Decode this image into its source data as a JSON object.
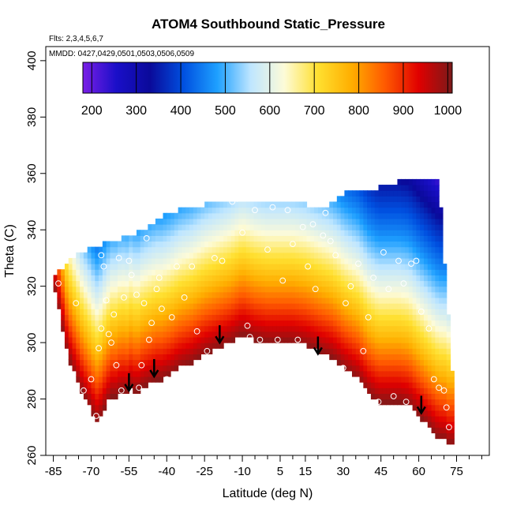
{
  "chart_data": {
    "type": "heatmap",
    "title": "ATOM4 Southbound Static_Pressure",
    "subtitle_flights": "Flts: 2,3,4,5,6,7",
    "mmdd_note": "MMDD: 0427,0429,0501,0503,0506,0509",
    "xlabel": "Latitude (deg N)",
    "ylabel": "Theta (C)",
    "xlim": [
      -88,
      88
    ],
    "ylim": [
      260,
      405
    ],
    "x_ticks_labeled": [
      -85,
      -70,
      -55,
      -40,
      -25,
      -10,
      5,
      15,
      30,
      45,
      60,
      75
    ],
    "x_ticks_labels": [
      "-85",
      "-70",
      "-55",
      "-40",
      "-25",
      "-10",
      "5",
      "15",
      "30",
      "45",
      "60",
      "75"
    ],
    "x_ticks_minor": [
      -80,
      -75,
      -65,
      -60,
      -50,
      -45,
      -35,
      -30,
      -20,
      -15,
      -5,
      0,
      10,
      20,
      25,
      35,
      40,
      50,
      55,
      65,
      70,
      80,
      85
    ],
    "y_ticks": [
      260,
      280,
      300,
      320,
      340,
      360,
      380,
      400
    ],
    "y_ticks_labels": [
      "260",
      "280",
      "300",
      "320",
      "340",
      "360",
      "380",
      "400"
    ],
    "colorbar": {
      "min": 180,
      "max": 1010,
      "ticks": [
        200,
        300,
        400,
        500,
        600,
        700,
        800,
        900,
        1000
      ],
      "tick_labels": [
        "200",
        "300",
        "400",
        "500",
        "600",
        "700",
        "800",
        "900",
        "1000"
      ],
      "colors": [
        "#7a1fe6",
        "#1a0fc8",
        "#0a0a9a",
        "#0050e0",
        "#1ea0ff",
        "#bfe6ff",
        "#fdfbd8",
        "#ffe030",
        "#ffae00",
        "#ff5a00",
        "#e00000",
        "#7a1a1a"
      ]
    },
    "envelope": {
      "lat": [
        -85,
        -82,
        -80,
        -78,
        -74,
        -70,
        -68,
        -66,
        -64,
        -62,
        -60,
        -58,
        -56,
        -54,
        -52,
        -50,
        -48,
        -46,
        -44,
        -42,
        -40,
        -38,
        -35,
        -30,
        -25,
        -20,
        -15,
        -10,
        -5,
        0,
        5,
        10,
        15,
        20,
        25,
        28,
        30,
        33,
        36,
        40,
        44,
        48,
        52,
        56,
        60,
        64,
        68,
        70,
        72,
        73
      ],
      "bottom": [
        321,
        308,
        298,
        292,
        283,
        276,
        272,
        274,
        278,
        281,
        281,
        283,
        282,
        284,
        282,
        284,
        285,
        286,
        287,
        287,
        288,
        289,
        291,
        293,
        296,
        298,
        300,
        303,
        301,
        300,
        300,
        300,
        299,
        297,
        295,
        293,
        291,
        289,
        287,
        282,
        279,
        279,
        279,
        278,
        274,
        270,
        266,
        266,
        264,
        264
      ],
      "top": [
        322,
        325,
        327,
        329,
        331,
        333,
        334,
        334,
        335,
        335,
        336,
        336,
        337,
        337,
        338,
        339,
        340,
        341,
        343,
        344,
        345,
        346,
        346,
        347,
        348,
        349,
        350,
        350,
        350,
        350,
        350,
        349,
        348,
        348,
        348,
        350,
        352,
        353,
        353,
        353,
        354,
        355,
        356,
        357,
        358,
        358,
        358,
        330,
        305,
        290
      ]
    },
    "pressure_field_description_levels": {
      "theta_offsets_above_bottom": [
        0,
        6,
        12,
        18,
        24,
        32,
        40,
        50,
        60,
        75,
        90
      ],
      "pressure_values": [
        1000,
        940,
        880,
        820,
        760,
        690,
        620,
        540,
        460,
        360,
        240
      ]
    },
    "tropopause_arrows": [
      {
        "lat": -55,
        "theta": 283
      },
      {
        "lat": -45,
        "theta": 288
      },
      {
        "lat": -19,
        "theta": 300
      },
      {
        "lat": 20,
        "theta": 296
      },
      {
        "lat": 61,
        "theta": 275
      }
    ],
    "observation_points": [
      {
        "lat": -83,
        "theta": 321
      },
      {
        "lat": -76,
        "theta": 314
      },
      {
        "lat": -73,
        "theta": 283
      },
      {
        "lat": -70,
        "theta": 287
      },
      {
        "lat": -68,
        "theta": 274
      },
      {
        "lat": -67,
        "theta": 298
      },
      {
        "lat": -66,
        "theta": 305
      },
      {
        "lat": -66,
        "theta": 331
      },
      {
        "lat": -65,
        "theta": 327
      },
      {
        "lat": -64,
        "theta": 315
      },
      {
        "lat": -63,
        "theta": 303
      },
      {
        "lat": -62,
        "theta": 300
      },
      {
        "lat": -61,
        "theta": 310
      },
      {
        "lat": -60,
        "theta": 292
      },
      {
        "lat": -59,
        "theta": 330
      },
      {
        "lat": -58,
        "theta": 283
      },
      {
        "lat": -57,
        "theta": 316
      },
      {
        "lat": -55,
        "theta": 329
      },
      {
        "lat": -54,
        "theta": 324
      },
      {
        "lat": -52,
        "theta": 317
      },
      {
        "lat": -51,
        "theta": 284
      },
      {
        "lat": -50,
        "theta": 292
      },
      {
        "lat": -49,
        "theta": 314
      },
      {
        "lat": -48,
        "theta": 337
      },
      {
        "lat": -47,
        "theta": 301
      },
      {
        "lat": -46,
        "theta": 307
      },
      {
        "lat": -44,
        "theta": 319
      },
      {
        "lat": -43,
        "theta": 323
      },
      {
        "lat": -42,
        "theta": 312
      },
      {
        "lat": -40,
        "theta": 287
      },
      {
        "lat": -38,
        "theta": 309
      },
      {
        "lat": -36,
        "theta": 327
      },
      {
        "lat": -33,
        "theta": 316
      },
      {
        "lat": -30,
        "theta": 327
      },
      {
        "lat": -28,
        "theta": 304
      },
      {
        "lat": -24,
        "theta": 297
      },
      {
        "lat": -21,
        "theta": 330
      },
      {
        "lat": -18,
        "theta": 329
      },
      {
        "lat": -14,
        "theta": 350
      },
      {
        "lat": -12,
        "theta": 351
      },
      {
        "lat": -10,
        "theta": 339
      },
      {
        "lat": -8,
        "theta": 306
      },
      {
        "lat": -7,
        "theta": 302
      },
      {
        "lat": -5,
        "theta": 347
      },
      {
        "lat": -3,
        "theta": 301
      },
      {
        "lat": 0,
        "theta": 333
      },
      {
        "lat": 2,
        "theta": 348
      },
      {
        "lat": 4,
        "theta": 301
      },
      {
        "lat": 6,
        "theta": 322
      },
      {
        "lat": 8,
        "theta": 347
      },
      {
        "lat": 10,
        "theta": 335
      },
      {
        "lat": 12,
        "theta": 301
      },
      {
        "lat": 14,
        "theta": 341
      },
      {
        "lat": 16,
        "theta": 327
      },
      {
        "lat": 18,
        "theta": 342
      },
      {
        "lat": 19,
        "theta": 319
      },
      {
        "lat": 22,
        "theta": 338
      },
      {
        "lat": 23,
        "theta": 346
      },
      {
        "lat": 25,
        "theta": 336
      },
      {
        "lat": 27,
        "theta": 331
      },
      {
        "lat": 30,
        "theta": 291
      },
      {
        "lat": 31,
        "theta": 314
      },
      {
        "lat": 33,
        "theta": 320
      },
      {
        "lat": 36,
        "theta": 328
      },
      {
        "lat": 38,
        "theta": 297
      },
      {
        "lat": 40,
        "theta": 309
      },
      {
        "lat": 42,
        "theta": 323
      },
      {
        "lat": 44,
        "theta": 279
      },
      {
        "lat": 46,
        "theta": 332
      },
      {
        "lat": 48,
        "theta": 319
      },
      {
        "lat": 50,
        "theta": 281
      },
      {
        "lat": 52,
        "theta": 329
      },
      {
        "lat": 54,
        "theta": 321
      },
      {
        "lat": 55,
        "theta": 279
      },
      {
        "lat": 57,
        "theta": 328
      },
      {
        "lat": 59,
        "theta": 329
      },
      {
        "lat": 61,
        "theta": 311
      },
      {
        "lat": 64,
        "theta": 305
      },
      {
        "lat": 66,
        "theta": 287
      },
      {
        "lat": 68,
        "theta": 284
      },
      {
        "lat": 70,
        "theta": 283
      },
      {
        "lat": 71,
        "theta": 277
      },
      {
        "lat": 72,
        "theta": 270
      }
    ]
  }
}
